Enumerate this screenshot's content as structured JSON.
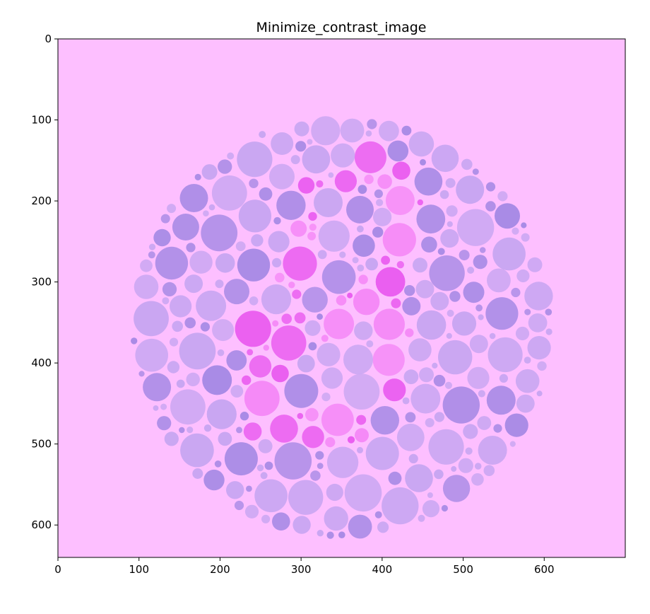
{
  "chart_data": {
    "type": "image",
    "title": "Minimize_contrast_image",
    "xlabel": "",
    "ylabel": "",
    "xlim": [
      0,
      700
    ],
    "ylim": [
      640,
      0
    ],
    "xticks": [
      0,
      100,
      200,
      300,
      400,
      500,
      600
    ],
    "yticks": [
      0,
      100,
      200,
      300,
      400,
      500,
      600
    ],
    "xtick_labels": [
      "0",
      "100",
      "200",
      "300",
      "400",
      "500",
      "600"
    ],
    "ytick_labels": [
      "0",
      "100",
      "200",
      "300",
      "400",
      "500",
      "600"
    ],
    "grid": false,
    "image_content": {
      "kind": "ishihara-color-plate",
      "background_color": "#fdbfff",
      "plate_center": [
        350,
        355
      ],
      "plate_radius": 262,
      "dot_color_background": "#c9a6f2",
      "dot_color_dark": "#a98be6",
      "dot_color_figure": "#f58af7",
      "dot_color_figure_strong": "#ea5ef0"
    }
  }
}
